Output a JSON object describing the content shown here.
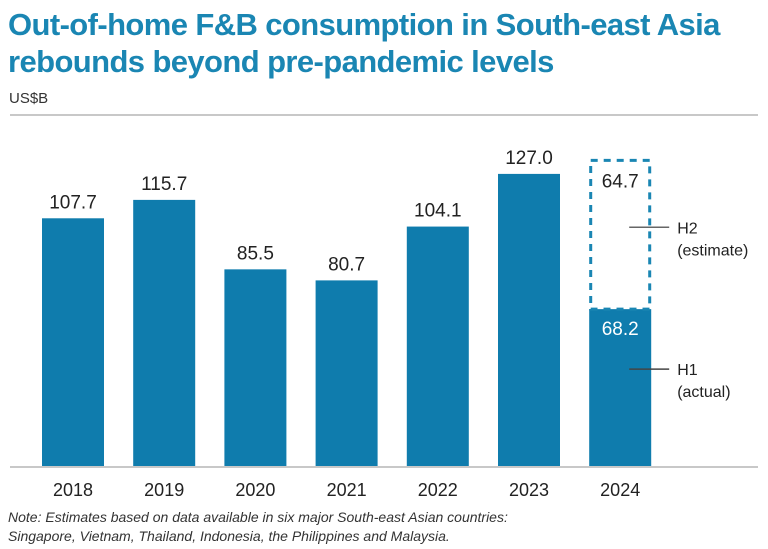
{
  "chart_data": {
    "type": "bar",
    "title": "Out-of-home F&B consumption in South-east Asia rebounds beyond pre-pandemic levels",
    "ylabel": "US$B",
    "xlabel": "",
    "categories": [
      "2018",
      "2019",
      "2020",
      "2021",
      "2022",
      "2023",
      "2024"
    ],
    "values": [
      107.7,
      115.7,
      85.5,
      80.7,
      104.1,
      127.0,
      68.2
    ],
    "labels": [
      "107.7",
      "115.7",
      "85.5",
      "80.7",
      "104.1",
      "127.0",
      "68.2"
    ],
    "stacked_estimate": {
      "category": "2024",
      "value": 64.7,
      "label": "64.7"
    },
    "annotations": [
      {
        "label": "H2",
        "sublabel": "(estimate)"
      },
      {
        "label": "H1",
        "sublabel": "(actual)"
      }
    ],
    "ylim": [
      0,
      133
    ],
    "grid": false,
    "colors": {
      "bar": "#0f7cad",
      "estimate_outline": "#1a86b3",
      "title": "#1a86b3",
      "axis": "#c8c8c8"
    }
  },
  "header": {
    "title": "Out-of-home F&B consumption in South-east Asia rebounds beyond pre-pandemic levels",
    "unit": "US$B"
  },
  "footer": {
    "note_line1": "Note: Estimates based on data available in six major South-east Asian countries:",
    "note_line2": "Singapore, Vietnam, Thailand, Indonesia, the Philippines and Malaysia."
  }
}
